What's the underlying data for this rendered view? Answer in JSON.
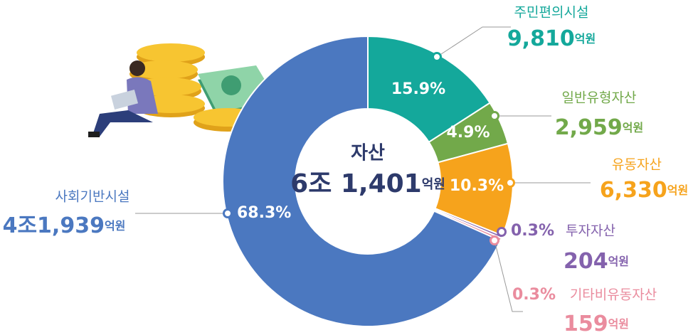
{
  "chart_data": {
    "type": "donut",
    "center_title": "자산",
    "total": {
      "value": 61401,
      "label": "6조 1,401"
    },
    "unit": "억원",
    "categories": [
      "주민편의시설",
      "일반유형자산",
      "유동자산",
      "투자자산",
      "기타비유동자산",
      "사회기반시설"
    ],
    "values": [
      15.9,
      4.9,
      10.3,
      0.3,
      0.3,
      68.3
    ],
    "value_labels": [
      "15.9%",
      "4.9%",
      "10.3%",
      "0.3%",
      "0.3%",
      "68.3%"
    ],
    "amounts": [
      {
        "value": 9810,
        "label": "9,810"
      },
      {
        "value": 2959,
        "label": "2,959"
      },
      {
        "value": 6330,
        "label": "6,330"
      },
      {
        "value": 204,
        "label": "204"
      },
      {
        "value": 159,
        "label": "159"
      },
      {
        "value": 41939,
        "label": "4조1,939"
      }
    ],
    "colors": [
      "#14a89b",
      "#72a94a",
      "#f6a31c",
      "#8462ad",
      "#ea8c9e",
      "#4b78c0"
    ]
  }
}
